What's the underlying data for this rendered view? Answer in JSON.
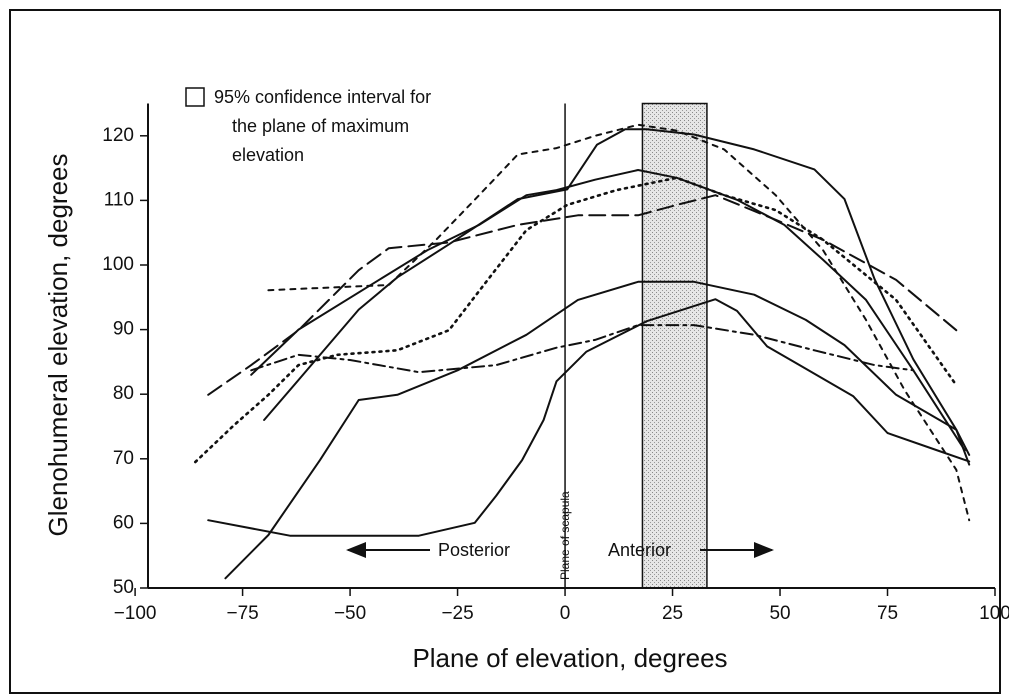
{
  "chart_data": {
    "type": "line",
    "xlabel": "Plane of elevation, degrees",
    "ylabel": "Glenohumeral elevation, degrees",
    "legend_note": [
      "95% confidence interval for",
      "the plane of maximum",
      "elevation"
    ],
    "reference_label": "Plane of scapula",
    "reference_line_x": 0,
    "confidence_band": [
      18,
      33
    ],
    "direction_labels": [
      "Posterior",
      "Anterior"
    ],
    "xlim": [
      -97,
      100
    ],
    "ylim": [
      50,
      125
    ],
    "xticks": [
      {
        "value": -100,
        "label": "−100"
      },
      {
        "value": -75,
        "label": "−75"
      },
      {
        "value": -50,
        "label": "−50"
      },
      {
        "value": -25,
        "label": "−25"
      },
      0,
      25,
      50,
      75,
      100
    ],
    "yticks": [
      50,
      60,
      70,
      80,
      90,
      100,
      110,
      120
    ],
    "series": [
      {
        "color": "#111",
        "dash": "solid",
        "x": [
          -83,
          -64,
          -34,
          -21,
          -16,
          -10,
          -5,
          -2,
          5,
          19,
          35,
          40,
          47,
          53,
          67,
          75,
          87,
          94
        ],
        "values": [
          60.5,
          58.1,
          58.1,
          60.1,
          64.3,
          69.8,
          76,
          82,
          86.6,
          91.3,
          94.7,
          92.9,
          87.4,
          85.1,
          79.7,
          74,
          71.2,
          69.6
        ]
      },
      {
        "color": "#111",
        "dash": "solid",
        "x": [
          -79,
          -69,
          -57,
          -48,
          -39,
          -25,
          -9,
          3,
          17,
          30,
          44,
          56,
          65,
          77,
          91,
          94
        ],
        "values": [
          51.5,
          58.2,
          69.8,
          79.1,
          79.9,
          83.7,
          89.2,
          94.6,
          97.4,
          97.4,
          95.4,
          91.5,
          87.6,
          79.9,
          74.5,
          70.6
        ]
      },
      {
        "color": "#111",
        "dash": "solid",
        "x": [
          -70,
          -62,
          -48,
          -39,
          -27,
          -11,
          0.5,
          7.4,
          14,
          19,
          30,
          44,
          58,
          65,
          72,
          81,
          91,
          94
        ],
        "values": [
          76,
          82.2,
          93.1,
          98.1,
          103.2,
          110.2,
          111.7,
          118.6,
          121,
          121,
          120.2,
          117.9,
          114.8,
          110.2,
          97.8,
          85.4,
          74.5,
          69.1
        ]
      },
      {
        "color": "#111",
        "dash": "solid",
        "x": [
          -73,
          -62,
          -43,
          -32,
          -20,
          -9,
          -2,
          7,
          17,
          26,
          40,
          51,
          60,
          70,
          81,
          93
        ],
        "values": [
          83,
          90,
          97.8,
          102.3,
          106.2,
          110.8,
          111.6,
          113.2,
          114.7,
          113.5,
          110.1,
          106.2,
          100.8,
          94.6,
          83.7,
          71.3
        ]
      },
      {
        "color": "#111",
        "dash": "longdash",
        "x": [
          -83,
          -73,
          -62,
          -48,
          -41,
          -27,
          -11,
          3,
          17,
          26,
          35,
          49,
          60,
          77,
          91
        ],
        "values": [
          79.9,
          84.5,
          89.9,
          99.2,
          102.6,
          103.5,
          106.2,
          107.7,
          107.7,
          109.3,
          110.8,
          107,
          103.9,
          97.7,
          89.9
        ]
      },
      {
        "color": "#111",
        "dash": "dashdot",
        "x": [
          -73,
          -62,
          -50,
          -34,
          -16,
          -2,
          7,
          17,
          30,
          44,
          58,
          72,
          81
        ],
        "values": [
          83.7,
          86.1,
          85.3,
          83.4,
          84.5,
          87.2,
          88.4,
          90.7,
          90.7,
          89.2,
          86.8,
          84.5,
          83.7
        ]
      },
      {
        "color": "#111",
        "dash": "dotted",
        "x": [
          -86,
          -77,
          -69,
          -62,
          -53,
          -39,
          -27,
          -18,
          -9,
          0.5,
          12,
          26,
          37,
          49,
          60,
          77,
          91
        ],
        "values": [
          69.5,
          75.2,
          79.9,
          84.5,
          86.1,
          86.8,
          89.9,
          97.7,
          105.4,
          109.3,
          111.6,
          113.5,
          110.8,
          108.5,
          103.9,
          94.6,
          81.4
        ]
      },
      {
        "color": "#111",
        "dash": "shortdash",
        "x": [
          -69,
          -41,
          -30,
          -20,
          -11,
          -2,
          7,
          17,
          26,
          37,
          49,
          60,
          70,
          79,
          91,
          94
        ],
        "values": [
          96.1,
          96.9,
          103.9,
          110.8,
          117.1,
          118.1,
          120,
          121.7,
          120.8,
          117.9,
          110.8,
          102.3,
          91.5,
          80.6,
          68.3,
          60.5
        ]
      }
    ]
  }
}
